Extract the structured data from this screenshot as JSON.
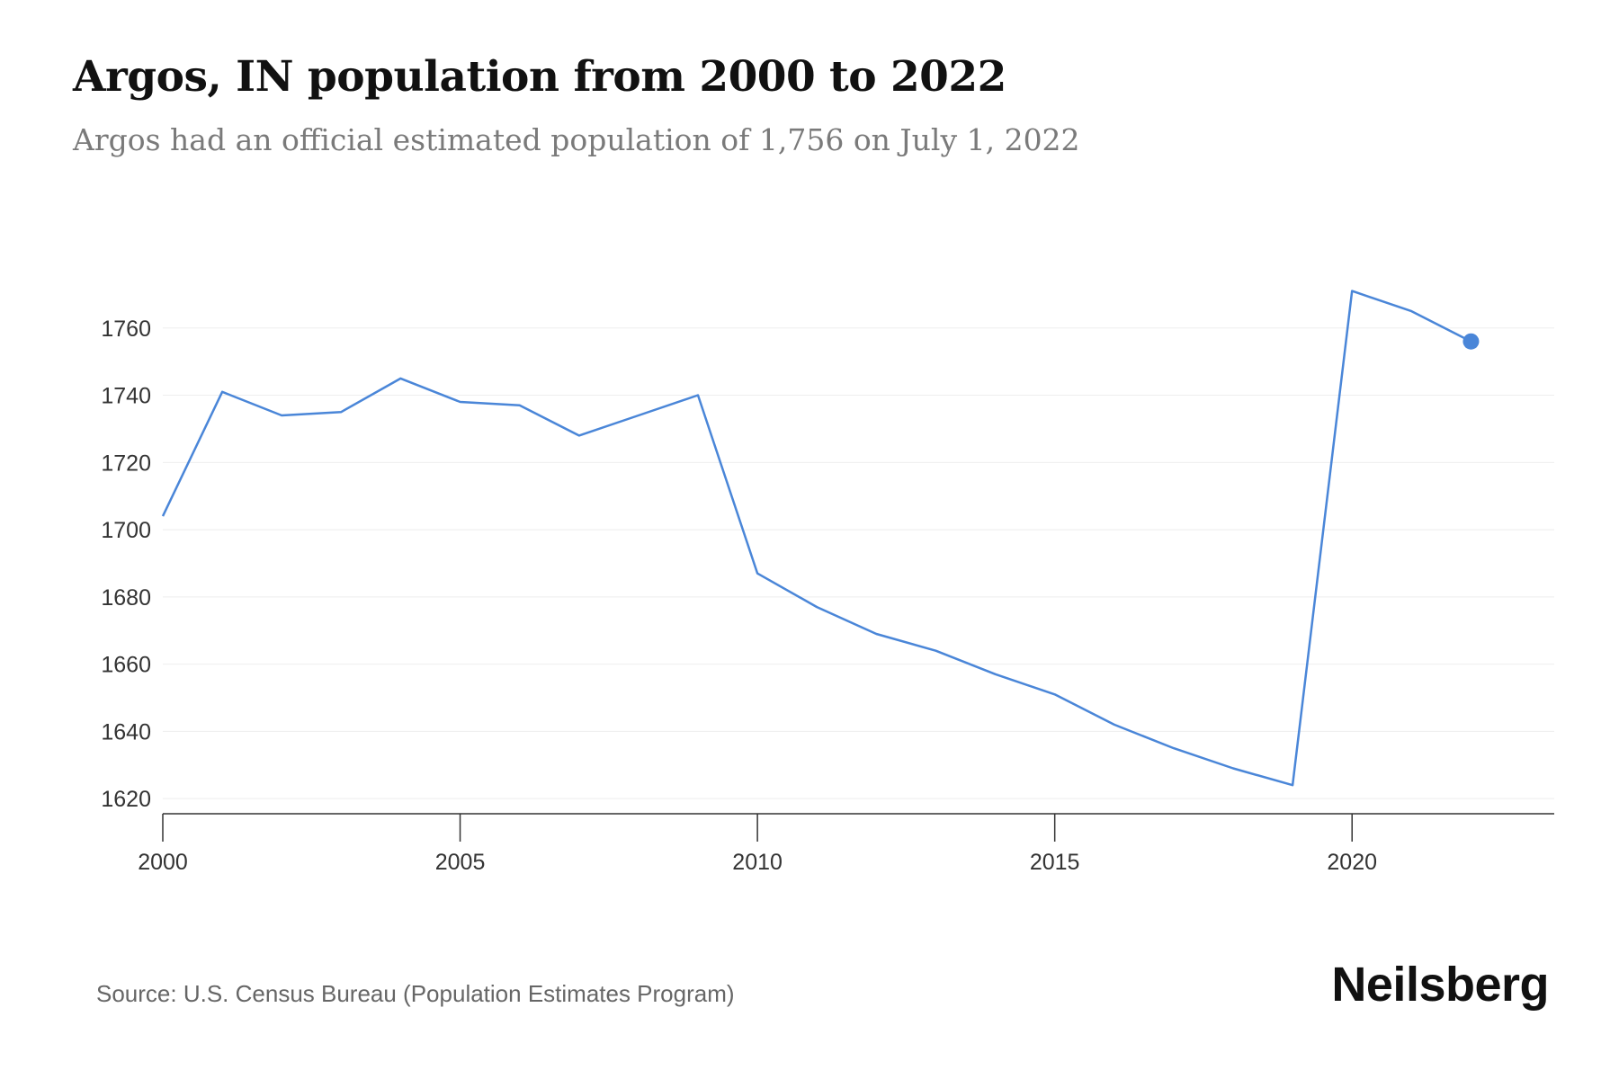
{
  "header": {
    "title": "Argos, IN population from 2000 to 2022",
    "subtitle": "Argos had an official estimated population of 1,756 on July 1, 2022"
  },
  "footer": {
    "source": "Source: U.S. Census Bureau (Population Estimates Program)",
    "brand": "Neilsberg"
  },
  "colors": {
    "line": "#4a86d8",
    "grid": "#eeeeee",
    "axis": "#333333"
  },
  "chart_data": {
    "type": "line",
    "x": [
      2000,
      2001,
      2002,
      2003,
      2004,
      2005,
      2006,
      2007,
      2008,
      2009,
      2010,
      2011,
      2012,
      2013,
      2014,
      2015,
      2016,
      2017,
      2018,
      2019,
      2020,
      2021,
      2022
    ],
    "values": [
      1704,
      1741,
      1734,
      1735,
      1745,
      1738,
      1737,
      1728,
      1734,
      1740,
      1687,
      1677,
      1669,
      1664,
      1657,
      1651,
      1642,
      1635,
      1629,
      1624,
      1771,
      1765,
      1756
    ],
    "x_ticks": [
      2000,
      2005,
      2010,
      2015,
      2020
    ],
    "y_ticks": [
      1620,
      1640,
      1660,
      1680,
      1700,
      1720,
      1740,
      1760
    ],
    "xlim": [
      2000,
      2023.4
    ],
    "ylim": [
      1615.5,
      1780
    ],
    "grid": "horizontal",
    "highlight_last_point": true
  }
}
